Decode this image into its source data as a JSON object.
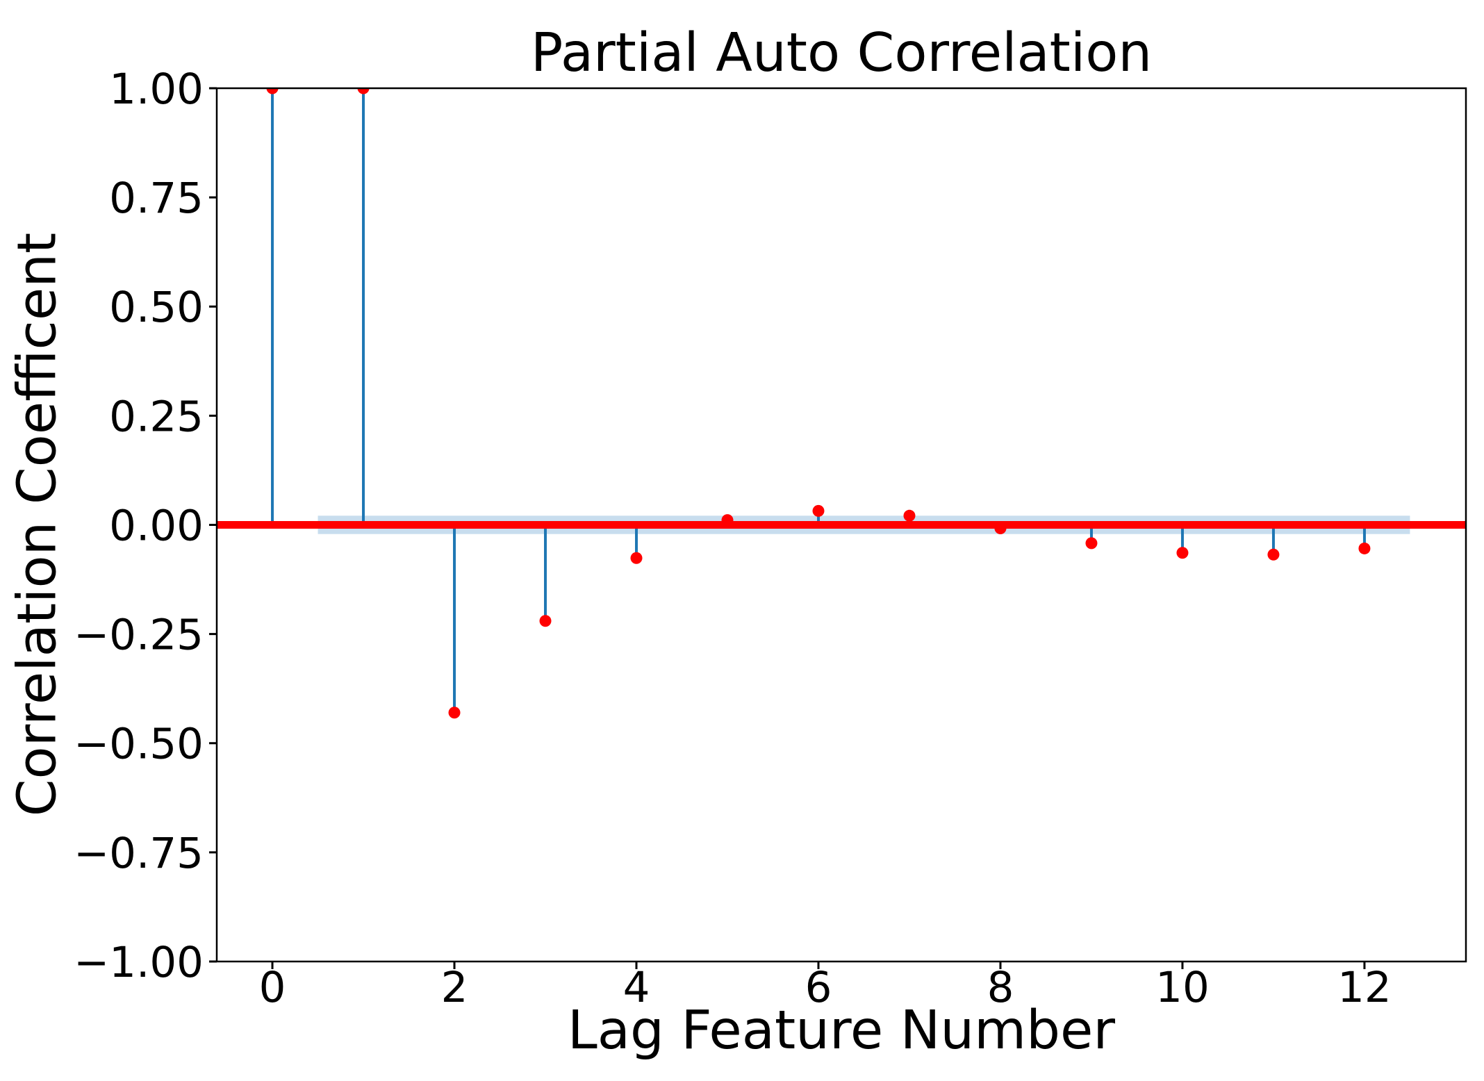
{
  "figure": {
    "title": "Partial Auto Correlation",
    "xlabel": "Lag Feature Number",
    "ylabel": "Correlation Coefficent"
  },
  "chart_data": {
    "type": "stem",
    "title": "Partial Auto Correlation",
    "xlabel": "Lag Feature Number",
    "ylabel": "Correlation Coefficent",
    "x": [
      0,
      1,
      2,
      3,
      4,
      5,
      6,
      7,
      8,
      9,
      10,
      11,
      12
    ],
    "values": [
      1.0,
      1.0,
      -0.43,
      -0.22,
      -0.076,
      0.011,
      0.032,
      0.021,
      -0.008,
      -0.042,
      -0.064,
      -0.068,
      -0.054
    ],
    "xlim": [
      -0.611,
      13.115
    ],
    "ylim": [
      -1.0,
      1.0
    ],
    "xticks": {
      "values": [
        0,
        2,
        4,
        6,
        8,
        10,
        12
      ],
      "labels": [
        "0",
        "2",
        "4",
        "6",
        "8",
        "10",
        "12"
      ]
    },
    "yticks": {
      "values": [
        1.0,
        0.75,
        0.5,
        0.25,
        0.0,
        -0.25,
        -0.5,
        -0.75,
        -1.0
      ],
      "labels": [
        "1.00",
        "0.75",
        "0.50",
        "0.25",
        "0.00",
        "−0.25",
        "−0.50",
        "−0.75",
        "−1.00"
      ]
    },
    "zero_line": {
      "y": 0.0,
      "color": "#ff0000",
      "thickness_px": 11
    },
    "conf_band": {
      "x_start": 0.5,
      "x_end": 12.5,
      "upper": 0.021,
      "lower": -0.021,
      "color": "#c8ddee"
    },
    "grid": false,
    "legend": null,
    "colors": {
      "stem": "#1f77b4",
      "marker": "#ff0000",
      "spine": "#000000",
      "text": "#000000"
    }
  }
}
